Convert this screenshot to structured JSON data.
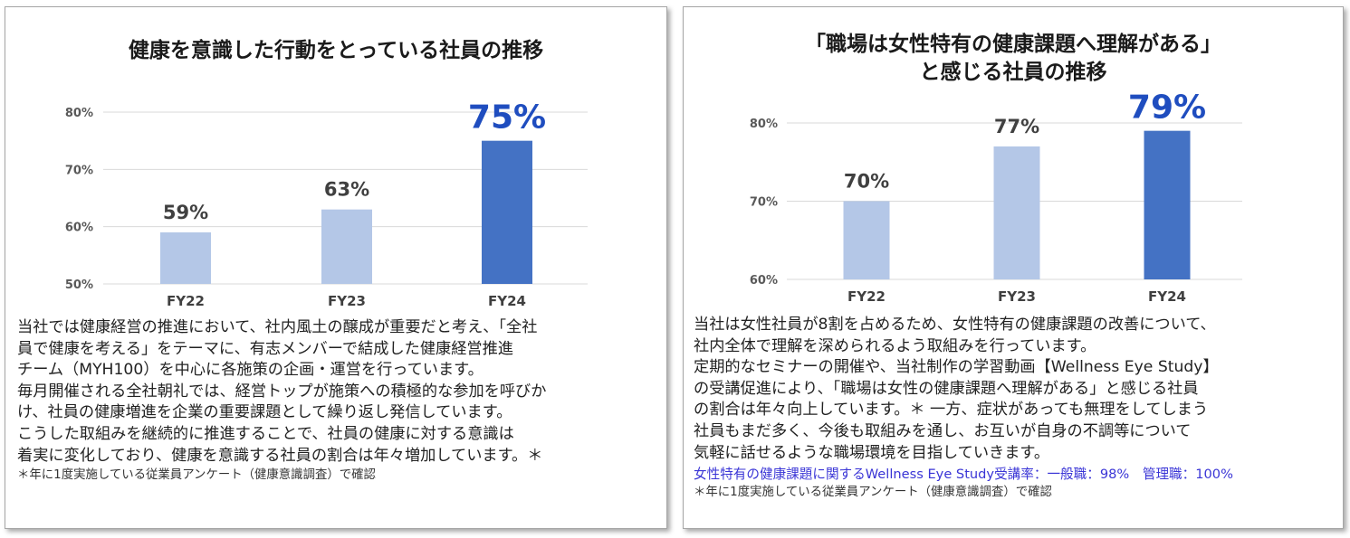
{
  "colors": {
    "light_bar": "#b4c7e7",
    "dark_bar": "#4472c4",
    "highlight_label": "#1f4dbf",
    "grid": "#d9d9d9",
    "link_text": "#3a35d6"
  },
  "left_panel": {
    "title": "健康を意識した行動をとっている社員の推移",
    "body_lines": [
      "当社では健康経営の推進において、社内風土の醸成が重要だと考え、「全社",
      "員で健康を考える」をテーマに、有志メンバーで結成した健康経営推進",
      "チーム（MYH100）を中心に各施策の企画・運営を行っています。",
      "毎月開催される全社朝礼では、経営トップが施策への積極的な参加を呼びか",
      "け、社員の健康増進を企業の重要課題として繰り返し発信しています。",
      "こうした取組みを継続的に推進することで、社員の健康に対する意識は",
      "着実に変化しており、健康を意識する社員の割合は年々増加しています。＊"
    ],
    "footnote": "＊年に1度実施している従業員アンケート（健康意識調査）で確認"
  },
  "right_panel": {
    "title_line1": "「職場は女性特有の健康課題へ理解がある」",
    "title_line2": "と感じる社員の推移",
    "body_lines": [
      "当社は女性社員が8割を占めるため、女性特有の健康課題の改善について、",
      "社内全体で理解を深められるよう取組みを行っています。",
      "定期的なセミナーの開催や、当社制作の学習動画【Wellness Eye Study】",
      "の受講促進により、「職場は女性の健康課題へ理解がある」と感じる社員",
      "の割合は年々向上しています。＊ 一方、症状があっても無理をしてしまう",
      "社員もまだ多く、今後も取組みを通し、お互いが自身の不調等について",
      "気軽に話せるような職場環境を目指していきます。"
    ],
    "blue_line": "女性特有の健康課題に関するWellness Eye Study受講率：一般職：98%　管理職：100%",
    "footnote": "＊年に1度実施している従業員アンケート（健康意識調査）で確認"
  },
  "chart_data": [
    {
      "type": "bar",
      "title": "健康を意識した行動をとっている社員の推移",
      "categories": [
        "FY22",
        "FY23",
        "FY24"
      ],
      "values": [
        59,
        63,
        75
      ],
      "value_labels": [
        "59%",
        "63%",
        "75%"
      ],
      "y_ticks": [
        "50%",
        "60%",
        "70%",
        "80%"
      ],
      "ylim": [
        50,
        80
      ],
      "grid": true,
      "highlight_index": 2
    },
    {
      "type": "bar",
      "title": "「職場は女性特有の健康課題へ理解がある」と感じる社員の推移",
      "categories": [
        "FY22",
        "FY23",
        "FY24"
      ],
      "values": [
        70,
        77,
        79
      ],
      "value_labels": [
        "70%",
        "77%",
        "79%"
      ],
      "y_ticks": [
        "60%",
        "70%",
        "80%"
      ],
      "ylim": [
        60,
        80
      ],
      "grid": true,
      "highlight_index": 2
    }
  ]
}
